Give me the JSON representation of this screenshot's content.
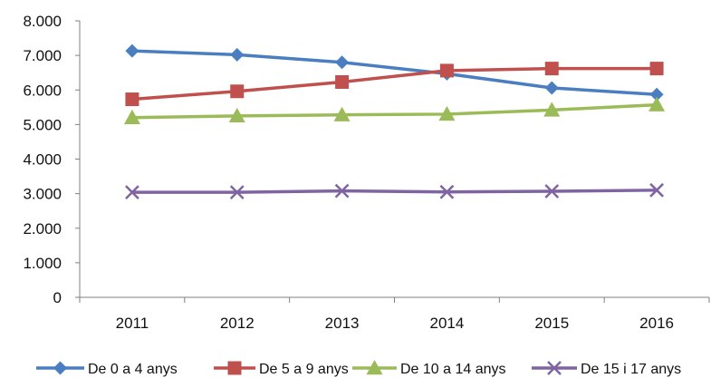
{
  "chart_data": {
    "type": "line",
    "title": "",
    "xlabel": "",
    "ylabel": "",
    "categories": [
      "2011",
      "2012",
      "2013",
      "2014",
      "2015",
      "2016"
    ],
    "ylim": [
      0,
      8000
    ],
    "yticks": [
      0,
      1000,
      2000,
      3000,
      4000,
      5000,
      6000,
      7000,
      8000
    ],
    "ytick_labels": [
      "0",
      "1.000",
      "2.000",
      "3.000",
      "4.000",
      "5.000",
      "6.000",
      "7.000",
      "8.000"
    ],
    "grid": false,
    "legend_position": "bottom",
    "series": [
      {
        "name": "De 0 a 4 anys",
        "color": "#4a7ec1",
        "marker": "diamond",
        "values": [
          7130,
          7020,
          6800,
          6470,
          6060,
          5870
        ]
      },
      {
        "name": "De 5 a 9 anys",
        "color": "#c0504d",
        "marker": "square",
        "values": [
          5730,
          5960,
          6230,
          6560,
          6620,
          6620
        ]
      },
      {
        "name": "De 10 a 14 anys",
        "color": "#9bbb59",
        "marker": "triangle",
        "values": [
          5200,
          5250,
          5280,
          5300,
          5420,
          5570
        ]
      },
      {
        "name": "De 15 i 17 anys",
        "color": "#8064a2",
        "marker": "x",
        "values": [
          3040,
          3040,
          3080,
          3050,
          3070,
          3100
        ]
      }
    ]
  }
}
